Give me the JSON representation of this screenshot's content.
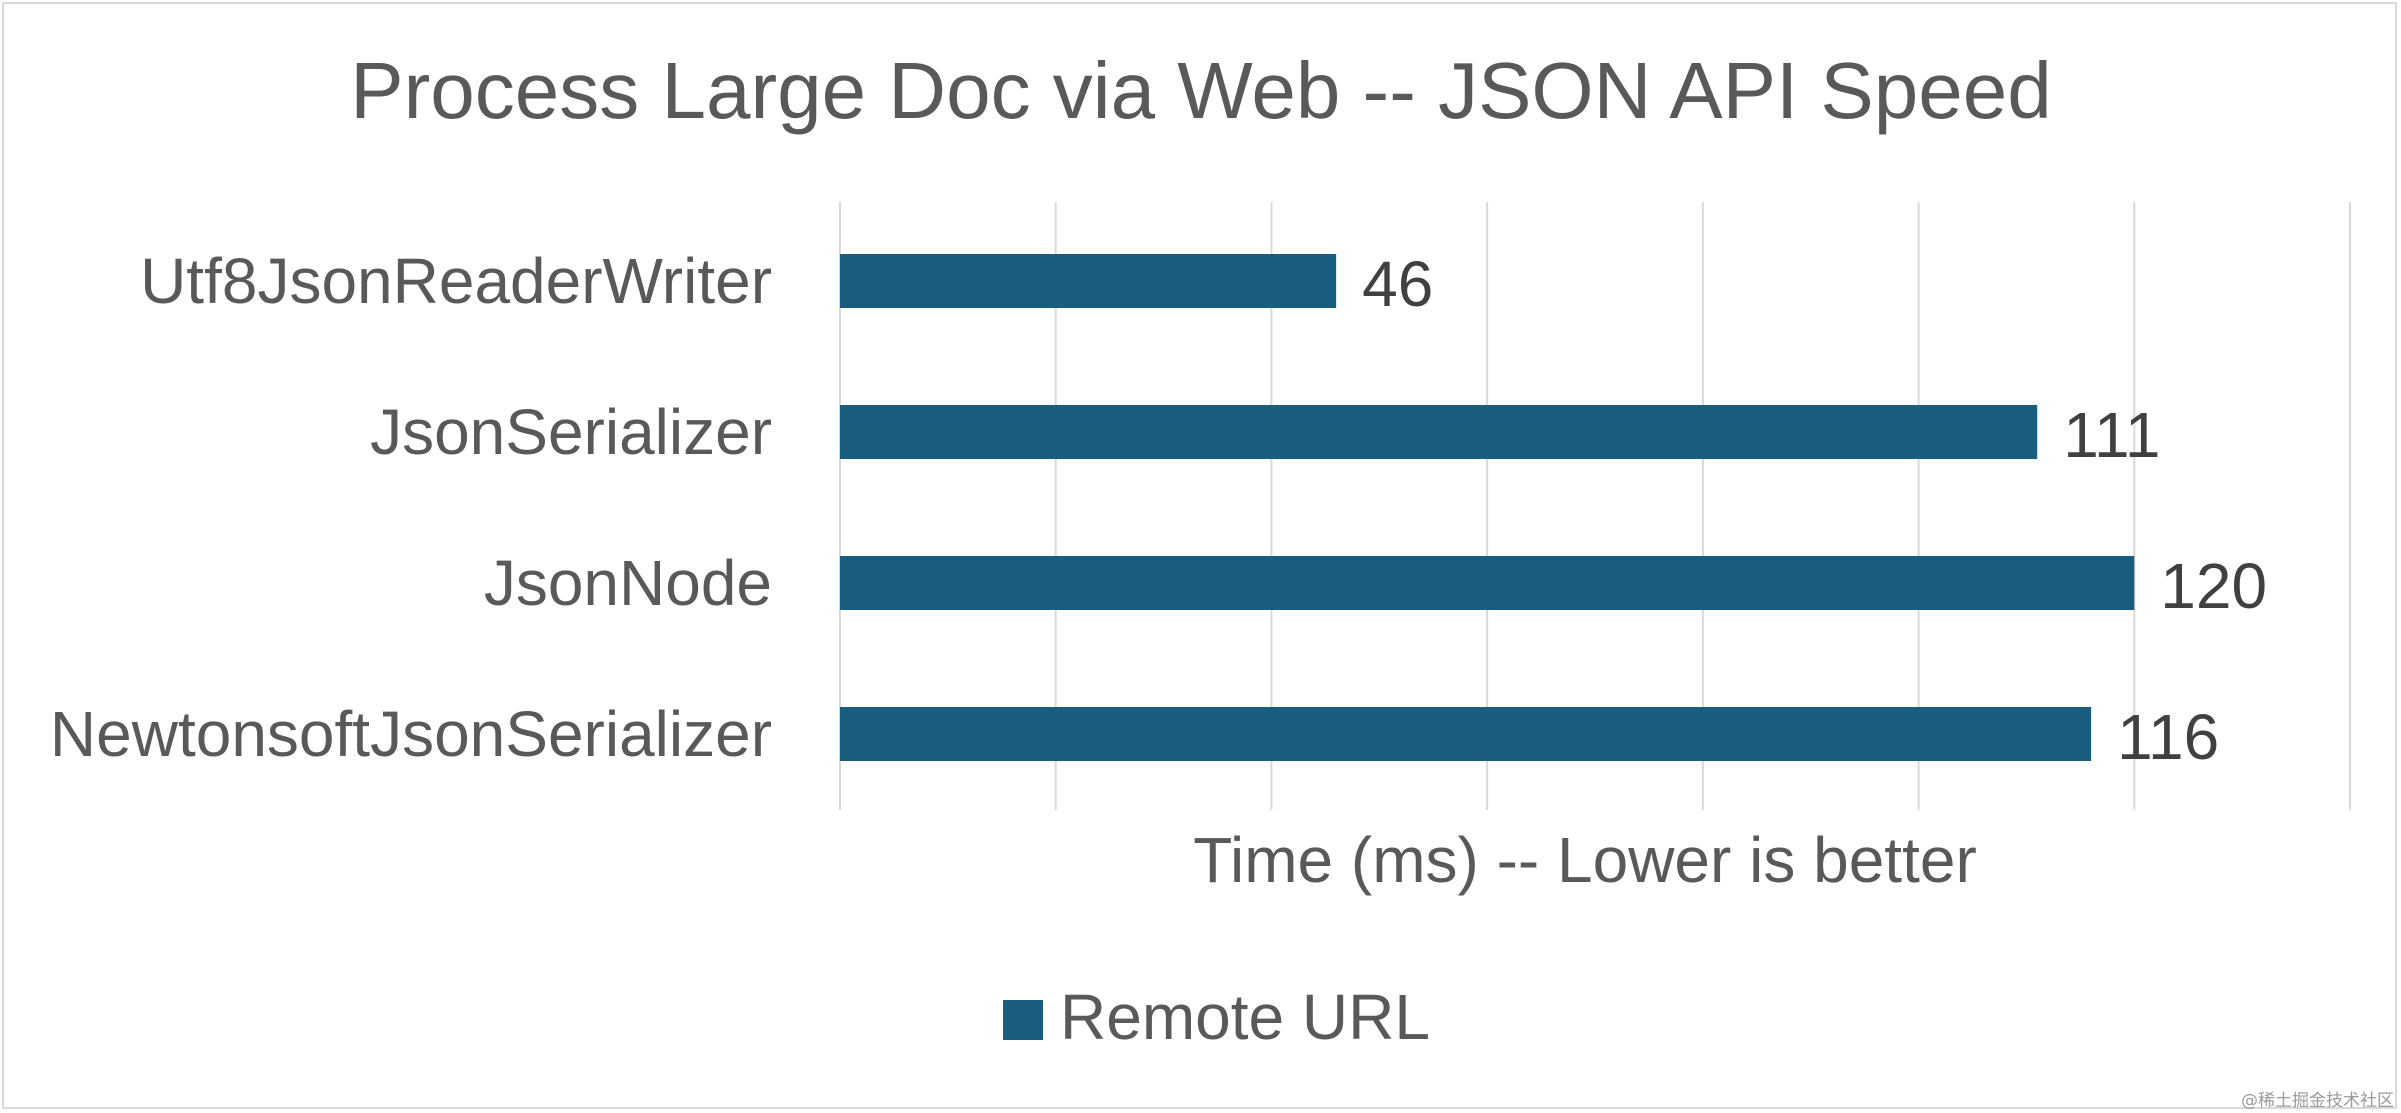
{
  "chart_data": {
    "type": "bar",
    "orientation": "horizontal",
    "title": "Process Large Doc via Web -- JSON API Speed",
    "xlabel": "Time (ms) -- Lower is better",
    "ylabel": "",
    "categories": [
      "Utf8JsonReaderWriter",
      "JsonSerializer",
      "JsonNode",
      "NewtonsoftJsonSerializer"
    ],
    "series": [
      {
        "name": "Remote URL",
        "values": [
          46,
          111,
          120,
          116
        ],
        "color": "#1a5e7f"
      }
    ],
    "xlim": [
      0,
      140
    ],
    "x_gridlines": [
      0,
      20,
      40,
      60,
      80,
      100,
      120,
      140
    ],
    "grid": "vertical gridlines",
    "x_tick_labels_shown": false,
    "data_labels": true,
    "legend": {
      "position": "bottom",
      "entries": [
        "Remote URL"
      ]
    }
  },
  "watermark": "@稀土掘金技术社区",
  "colors": {
    "bar": "#1a5e7f",
    "grid": "#d9d9d9",
    "text": "#595959",
    "data_label": "#404040",
    "background": "#ffffff"
  }
}
